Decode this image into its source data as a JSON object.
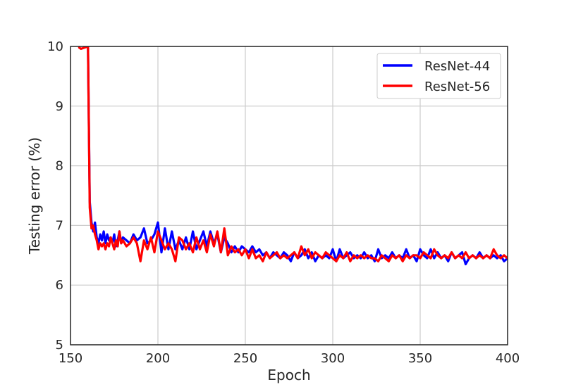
{
  "chart_data": {
    "type": "line",
    "title": "",
    "xlabel": "Epoch",
    "ylabel": "Testing error (%)",
    "xlim": [
      150,
      400
    ],
    "ylim": [
      5,
      10
    ],
    "xticks": [
      150,
      200,
      250,
      300,
      350,
      400
    ],
    "yticks": [
      5,
      6,
      7,
      8,
      9,
      10
    ],
    "grid": true,
    "legend_position": "top-right",
    "series": [
      {
        "name": "ResNet-44",
        "color": "#0000ff",
        "x": [
          160,
          161,
          162,
          163,
          164,
          165,
          166,
          167,
          168,
          169,
          170,
          171,
          172,
          173,
          174,
          175,
          176,
          177,
          178,
          179,
          180,
          182,
          184,
          186,
          188,
          190,
          192,
          194,
          196,
          198,
          200,
          202,
          204,
          206,
          208,
          210,
          212,
          214,
          216,
          218,
          220,
          222,
          224,
          226,
          228,
          230,
          232,
          234,
          236,
          238,
          240,
          242,
          244,
          246,
          248,
          250,
          252,
          254,
          256,
          258,
          260,
          262,
          264,
          266,
          268,
          270,
          272,
          274,
          276,
          278,
          280,
          282,
          284,
          286,
          288,
          290,
          292,
          294,
          296,
          298,
          300,
          302,
          304,
          306,
          308,
          310,
          312,
          314,
          316,
          318,
          320,
          322,
          324,
          326,
          328,
          330,
          332,
          334,
          336,
          338,
          340,
          342,
          344,
          346,
          348,
          350,
          352,
          354,
          356,
          358,
          360,
          362,
          364,
          366,
          368,
          370,
          372,
          374,
          376,
          378,
          380,
          382,
          384,
          386,
          388,
          390,
          392,
          394,
          396,
          398,
          400
        ],
        "y": [
          10.0,
          7.4,
          7.05,
          6.9,
          7.05,
          6.8,
          6.7,
          6.85,
          6.75,
          6.9,
          6.7,
          6.85,
          6.75,
          6.8,
          6.7,
          6.85,
          6.65,
          6.75,
          6.9,
          6.7,
          6.8,
          6.75,
          6.7,
          6.85,
          6.75,
          6.8,
          6.95,
          6.7,
          6.75,
          6.85,
          7.05,
          6.55,
          6.95,
          6.6,
          6.9,
          6.6,
          6.75,
          6.6,
          6.8,
          6.6,
          6.9,
          6.6,
          6.75,
          6.9,
          6.65,
          6.9,
          6.7,
          6.85,
          6.55,
          6.8,
          6.7,
          6.55,
          6.65,
          6.55,
          6.65,
          6.6,
          6.55,
          6.65,
          6.55,
          6.6,
          6.5,
          6.55,
          6.45,
          6.55,
          6.5,
          6.45,
          6.55,
          6.5,
          6.4,
          6.55,
          6.45,
          6.5,
          6.6,
          6.45,
          6.55,
          6.4,
          6.5,
          6.45,
          6.5,
          6.45,
          6.6,
          6.4,
          6.6,
          6.45,
          6.5,
          6.55,
          6.45,
          6.5,
          6.45,
          6.55,
          6.45,
          6.5,
          6.4,
          6.6,
          6.45,
          6.5,
          6.45,
          6.55,
          6.45,
          6.5,
          6.45,
          6.6,
          6.45,
          6.5,
          6.4,
          6.6,
          6.5,
          6.45,
          6.6,
          6.45,
          6.55,
          6.45,
          6.5,
          6.4,
          6.55,
          6.45,
          6.5,
          6.55,
          6.35,
          6.45,
          6.5,
          6.45,
          6.55,
          6.45,
          6.5,
          6.45,
          6.5,
          6.45,
          6.5,
          6.4,
          6.45
        ]
      },
      {
        "name": "ResNet-56",
        "color": "#ff0000",
        "x": [
          155,
          156,
          160,
          161,
          162,
          163,
          164,
          165,
          166,
          167,
          168,
          169,
          170,
          171,
          172,
          173,
          174,
          175,
          176,
          177,
          178,
          179,
          180,
          182,
          184,
          186,
          188,
          190,
          192,
          194,
          196,
          198,
          200,
          202,
          204,
          206,
          208,
          210,
          212,
          214,
          216,
          218,
          220,
          222,
          224,
          226,
          228,
          230,
          232,
          234,
          236,
          238,
          240,
          242,
          244,
          246,
          248,
          250,
          252,
          254,
          256,
          258,
          260,
          262,
          264,
          266,
          268,
          270,
          272,
          274,
          276,
          278,
          280,
          282,
          284,
          286,
          288,
          290,
          292,
          294,
          296,
          298,
          300,
          302,
          304,
          306,
          308,
          310,
          312,
          314,
          316,
          318,
          320,
          322,
          324,
          326,
          328,
          330,
          332,
          334,
          336,
          338,
          340,
          342,
          344,
          346,
          348,
          350,
          352,
          354,
          356,
          358,
          360,
          362,
          364,
          366,
          368,
          370,
          372,
          374,
          376,
          378,
          380,
          382,
          384,
          386,
          388,
          390,
          392,
          394,
          396,
          398,
          400
        ],
        "y": [
          9.98,
          9.96,
          10.0,
          7.3,
          6.95,
          7.0,
          6.85,
          6.75,
          6.6,
          6.7,
          6.65,
          6.7,
          6.6,
          6.7,
          6.65,
          6.8,
          6.7,
          6.6,
          6.75,
          6.65,
          6.9,
          6.7,
          6.75,
          6.65,
          6.7,
          6.8,
          6.7,
          6.4,
          6.75,
          6.6,
          6.8,
          6.55,
          6.9,
          6.75,
          6.6,
          6.7,
          6.6,
          6.4,
          6.8,
          6.75,
          6.6,
          6.7,
          6.55,
          6.8,
          6.6,
          6.75,
          6.55,
          6.85,
          6.65,
          6.9,
          6.55,
          6.95,
          6.5,
          6.65,
          6.55,
          6.6,
          6.5,
          6.6,
          6.45,
          6.6,
          6.45,
          6.5,
          6.4,
          6.55,
          6.45,
          6.5,
          6.55,
          6.45,
          6.5,
          6.45,
          6.5,
          6.55,
          6.45,
          6.65,
          6.5,
          6.6,
          6.45,
          6.55,
          6.5,
          6.45,
          6.55,
          6.5,
          6.45,
          6.4,
          6.5,
          6.45,
          6.55,
          6.4,
          6.5,
          6.45,
          6.5,
          6.45,
          6.5,
          6.45,
          6.45,
          6.4,
          6.5,
          6.45,
          6.4,
          6.5,
          6.45,
          6.5,
          6.4,
          6.5,
          6.45,
          6.5,
          6.5,
          6.45,
          6.55,
          6.5,
          6.45,
          6.6,
          6.5,
          6.45,
          6.5,
          6.45,
          6.55,
          6.45,
          6.5,
          6.45,
          6.55,
          6.45,
          6.5,
          6.45,
          6.5,
          6.45,
          6.5,
          6.45,
          6.6,
          6.5,
          6.45,
          6.5,
          6.45
        ]
      }
    ]
  }
}
